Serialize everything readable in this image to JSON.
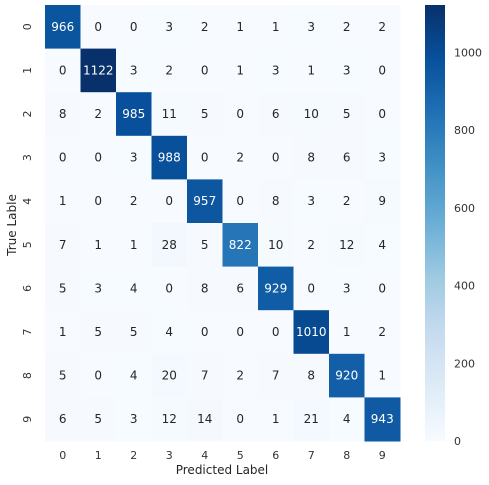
{
  "chart_data": {
    "type": "heatmap",
    "title": "",
    "xlabel": "Predicted Label",
    "ylabel": "True Lable",
    "x_categories": [
      "0",
      "1",
      "2",
      "3",
      "4",
      "5",
      "6",
      "7",
      "8",
      "9"
    ],
    "y_categories": [
      "0",
      "1",
      "2",
      "3",
      "4",
      "5",
      "6",
      "7",
      "8",
      "9"
    ],
    "matrix": [
      [
        966,
        0,
        0,
        3,
        2,
        1,
        1,
        3,
        2,
        2
      ],
      [
        0,
        1122,
        3,
        2,
        0,
        1,
        3,
        1,
        3,
        0
      ],
      [
        8,
        2,
        985,
        11,
        5,
        0,
        6,
        10,
        5,
        0
      ],
      [
        0,
        0,
        3,
        988,
        0,
        2,
        0,
        8,
        6,
        3
      ],
      [
        1,
        0,
        2,
        0,
        957,
        0,
        8,
        3,
        2,
        9
      ],
      [
        7,
        1,
        1,
        28,
        5,
        822,
        10,
        2,
        12,
        4
      ],
      [
        5,
        3,
        4,
        0,
        8,
        6,
        929,
        0,
        3,
        0
      ],
      [
        1,
        5,
        5,
        4,
        0,
        0,
        0,
        1010,
        1,
        2
      ],
      [
        5,
        0,
        4,
        20,
        7,
        2,
        7,
        8,
        920,
        1
      ],
      [
        6,
        5,
        3,
        12,
        14,
        0,
        1,
        21,
        4,
        943
      ]
    ],
    "colormap": "Blues",
    "color_min": 0,
    "color_max": 1122,
    "colorbar_ticks": [
      "0",
      "200",
      "400",
      "600",
      "800",
      "1000"
    ],
    "colorbar_tick_values": [
      0,
      200,
      400,
      600,
      800,
      1000
    ],
    "annotate": true,
    "grid": false,
    "legend": "colorbar-right"
  }
}
